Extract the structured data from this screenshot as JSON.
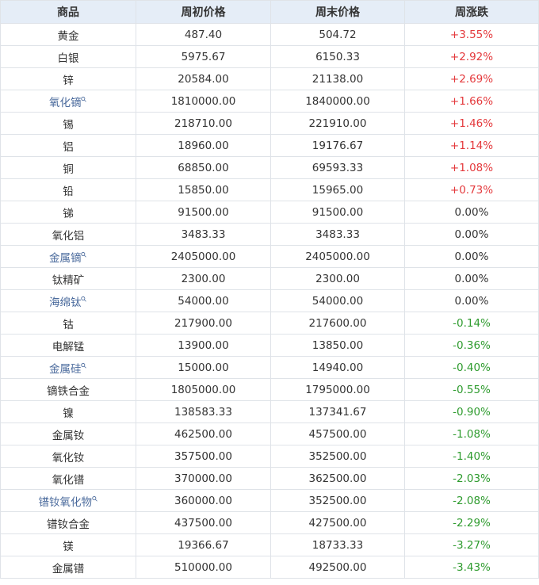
{
  "headers": [
    "商品",
    "周初价格",
    "周末价格",
    "周涨跌"
  ],
  "colors": {
    "up": "#e4393c",
    "down": "#2e9b2e",
    "link": "#4a6a9c",
    "header_bg": "#e5edf7"
  },
  "rows": [
    {
      "name": "黄金",
      "start": "487.40",
      "end": "504.72",
      "change": "+3.55%",
      "link": false
    },
    {
      "name": "白银",
      "start": "5975.67",
      "end": "6150.33",
      "change": "+2.92%",
      "link": false
    },
    {
      "name": "锌",
      "start": "20584.00",
      "end": "21138.00",
      "change": "+2.69%",
      "link": false
    },
    {
      "name": "氧化镝",
      "start": "1810000.00",
      "end": "1840000.00",
      "change": "+1.66%",
      "link": true
    },
    {
      "name": "锡",
      "start": "218710.00",
      "end": "221910.00",
      "change": "+1.46%",
      "link": false
    },
    {
      "name": "铝",
      "start": "18960.00",
      "end": "19176.67",
      "change": "+1.14%",
      "link": false
    },
    {
      "name": "铜",
      "start": "68850.00",
      "end": "69593.33",
      "change": "+1.08%",
      "link": false
    },
    {
      "name": "铅",
      "start": "15850.00",
      "end": "15965.00",
      "change": "+0.73%",
      "link": false
    },
    {
      "name": "锑",
      "start": "91500.00",
      "end": "91500.00",
      "change": "0.00%",
      "link": false
    },
    {
      "name": "氧化铝",
      "start": "3483.33",
      "end": "3483.33",
      "change": "0.00%",
      "link": false
    },
    {
      "name": "金属镝",
      "start": "2405000.00",
      "end": "2405000.00",
      "change": "0.00%",
      "link": true
    },
    {
      "name": "钛精矿",
      "start": "2300.00",
      "end": "2300.00",
      "change": "0.00%",
      "link": false
    },
    {
      "name": "海绵钛",
      "start": "54000.00",
      "end": "54000.00",
      "change": "0.00%",
      "link": true
    },
    {
      "name": "钴",
      "start": "217900.00",
      "end": "217600.00",
      "change": "-0.14%",
      "link": false
    },
    {
      "name": "电解锰",
      "start": "13900.00",
      "end": "13850.00",
      "change": "-0.36%",
      "link": false
    },
    {
      "name": "金属硅",
      "start": "15000.00",
      "end": "14940.00",
      "change": "-0.40%",
      "link": true
    },
    {
      "name": "镝铁合金",
      "start": "1805000.00",
      "end": "1795000.00",
      "change": "-0.55%",
      "link": false
    },
    {
      "name": "镍",
      "start": "138583.33",
      "end": "137341.67",
      "change": "-0.90%",
      "link": false
    },
    {
      "name": "金属钕",
      "start": "462500.00",
      "end": "457500.00",
      "change": "-1.08%",
      "link": false
    },
    {
      "name": "氧化钕",
      "start": "357500.00",
      "end": "352500.00",
      "change": "-1.40%",
      "link": false
    },
    {
      "name": "氧化镨",
      "start": "370000.00",
      "end": "362500.00",
      "change": "-2.03%",
      "link": false
    },
    {
      "name": "镨钕氧化物",
      "start": "360000.00",
      "end": "352500.00",
      "change": "-2.08%",
      "link": true
    },
    {
      "name": "镨钕合金",
      "start": "437500.00",
      "end": "427500.00",
      "change": "-2.29%",
      "link": false
    },
    {
      "name": "镁",
      "start": "19366.67",
      "end": "18733.33",
      "change": "-3.27%",
      "link": false
    },
    {
      "name": "金属镨",
      "start": "510000.00",
      "end": "492500.00",
      "change": "-3.43%",
      "link": false
    }
  ]
}
